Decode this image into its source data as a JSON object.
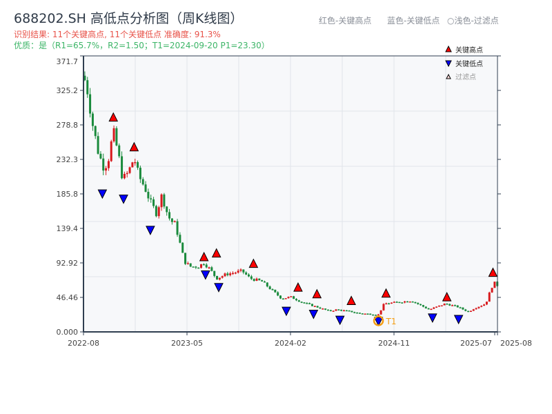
{
  "header": {
    "title": "688202.SH 高低点分析图（周K线图）",
    "result_line": "识别结果: 11个关键高点, 11个关键低点  准确度: 91.3%",
    "quality_line": "优质：是（R1=65.7%，R2=1.50；T1=2024-09-20 P1=23.30）",
    "legend_red": "红色-关键高点",
    "legend_blue": "蓝色-关键低点",
    "legend_light": "○浅色-过滤点"
  },
  "colors": {
    "up": "#d7191c",
    "down": "#1a8a3c",
    "high_marker": "#ff0000",
    "low_marker": "#0000ff",
    "t1": "#f39c12",
    "plot_bg": "#f7f8fa"
  },
  "chart_data": {
    "type": "candlestick",
    "frequency": "weekly",
    "xlim": [
      "2022-08-01",
      "2025-08-01"
    ],
    "ylim": [
      0,
      371.7
    ],
    "grid": true,
    "legend_position": "top-right",
    "x_ticks": [
      "2022-08",
      "2023-05",
      "2024-02",
      "2024-11",
      "2025-07",
      "2025-08"
    ],
    "y_ticks": [
      "0.000",
      "46.46",
      "92.92",
      "139.4",
      "185.8",
      "232.3",
      "278.8",
      "325.2",
      "371.7"
    ],
    "legend": [
      "关键高点",
      "关键低点",
      "过滤点"
    ],
    "close_path": [
      [
        "2022-08-01",
        345
      ],
      [
        "2022-08-10",
        330
      ],
      [
        "2022-08-25",
        280
      ],
      [
        "2022-09-10",
        240
      ],
      [
        "2022-09-25",
        220
      ],
      [
        "2022-10-07",
        235
      ],
      [
        "2022-10-19",
        270
      ],
      [
        "2022-11-01",
        240
      ],
      [
        "2022-11-13",
        205
      ],
      [
        "2022-11-28",
        215
      ],
      [
        "2022-12-13",
        235
      ],
      [
        "2022-12-25",
        210
      ],
      [
        "2023-01-10",
        195
      ],
      [
        "2023-01-25",
        175
      ],
      [
        "2023-02-10",
        160
      ],
      [
        "2023-02-25",
        185
      ],
      [
        "2023-03-07",
        165
      ],
      [
        "2023-03-19",
        150
      ],
      [
        "2023-04-01",
        145
      ],
      [
        "2023-04-25",
        95
      ],
      [
        "2023-05-10",
        88
      ],
      [
        "2023-06-01",
        88
      ],
      [
        "2023-06-16",
        93
      ],
      [
        "2023-07-01",
        85
      ],
      [
        "2023-07-19",
        72
      ],
      [
        "2023-08-16",
        78
      ],
      [
        "2023-09-25",
        82
      ],
      [
        "2023-10-16",
        72
      ],
      [
        "2023-11-16",
        68
      ],
      [
        "2024-01-07",
        45
      ],
      [
        "2024-02-01",
        47
      ],
      [
        "2024-03-01",
        40
      ],
      [
        "2024-04-01",
        35
      ],
      [
        "2024-05-13",
        28
      ],
      [
        "2024-06-01",
        30
      ],
      [
        "2024-07-01",
        28
      ],
      [
        "2024-08-01",
        25
      ],
      [
        "2024-09-20",
        23.3
      ],
      [
        "2024-10-05",
        38
      ],
      [
        "2024-12-16",
        42
      ],
      [
        "2025-02-01",
        30
      ],
      [
        "2025-03-16",
        38
      ],
      [
        "2025-04-16",
        34
      ],
      [
        "2025-05-16",
        27
      ],
      [
        "2025-06-01",
        32
      ],
      [
        "2025-07-01",
        38
      ],
      [
        "2025-07-16",
        60
      ],
      [
        "2025-07-28",
        68
      ],
      [
        "2025-08-01",
        62
      ]
    ],
    "key_highs": [
      [
        "2022-10-19",
        280
      ],
      [
        "2022-12-13",
        240
      ],
      [
        "2023-06-16",
        92
      ],
      [
        "2023-07-19",
        97
      ],
      [
        "2023-10-25",
        83
      ],
      [
        "2024-02-20",
        51
      ],
      [
        "2024-04-10",
        42
      ],
      [
        "2024-07-10",
        33
      ],
      [
        "2024-10-10",
        43
      ],
      [
        "2025-03-20",
        38
      ],
      [
        "2025-07-20",
        71
      ]
    ],
    "key_lows": [
      [
        "2022-09-20",
        195
      ],
      [
        "2022-11-15",
        188
      ],
      [
        "2023-01-25",
        146
      ],
      [
        "2023-06-20",
        86
      ],
      [
        "2023-07-25",
        69
      ],
      [
        "2024-01-20",
        37
      ],
      [
        "2024-04-01",
        33
      ],
      [
        "2024-06-10",
        25
      ],
      [
        "2024-09-20",
        23.3
      ],
      [
        "2025-02-10",
        28
      ],
      [
        "2025-04-20",
        26
      ]
    ],
    "annotation": {
      "label": "T1",
      "date": "2024-09-20",
      "price": 23.3
    }
  }
}
